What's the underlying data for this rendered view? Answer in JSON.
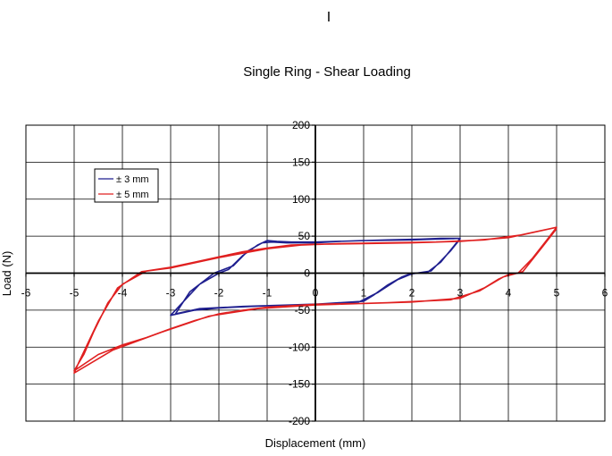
{
  "top_mark": "I",
  "chart_data": {
    "type": "line",
    "title": "Single Ring - Shear Loading",
    "xlabel": "Displacement (mm)",
    "ylabel": "Load (N)",
    "xlim": [
      -6,
      6
    ],
    "ylim": [
      -200,
      200
    ],
    "x_ticks": [
      "-6",
      "-5",
      "-4",
      "-3",
      "-2",
      "-1",
      "0",
      "1",
      "2",
      "3",
      "4",
      "5",
      "6"
    ],
    "y_ticks": [
      "200",
      "150",
      "100",
      "50",
      "0",
      "-50",
      "-100",
      "-150",
      "-200"
    ],
    "grid": true,
    "legend_position": "upper-left",
    "series": [
      {
        "name": "± 3 mm",
        "color": "#1f1f8f",
        "points": [
          [
            3.0,
            47
          ],
          [
            2.5,
            46
          ],
          [
            2.0,
            45
          ],
          [
            1.0,
            44
          ],
          [
            0.0,
            42
          ],
          [
            -0.5,
            42
          ],
          [
            -0.8,
            43
          ],
          [
            -1.0,
            44
          ],
          [
            -1.2,
            38
          ],
          [
            -1.5,
            24
          ],
          [
            -1.8,
            5
          ],
          [
            -2.0,
            0
          ],
          [
            -2.4,
            -15
          ],
          [
            -3.0,
            -57
          ],
          [
            -2.5,
            -50
          ],
          [
            -2.0,
            -47
          ],
          [
            -1.0,
            -44
          ],
          [
            0.0,
            -42
          ],
          [
            0.5,
            -40
          ],
          [
            1.0,
            -38
          ],
          [
            1.2,
            -30
          ],
          [
            1.5,
            -16
          ],
          [
            1.8,
            -5
          ],
          [
            2.0,
            0
          ],
          [
            2.3,
            0
          ],
          [
            2.6,
            15
          ],
          [
            3.0,
            47
          ],
          [
            2.6,
            47
          ],
          [
            2.2,
            46
          ],
          [
            1.5,
            45
          ],
          [
            0.5,
            43
          ],
          [
            0.0,
            41
          ],
          [
            -0.6,
            41
          ],
          [
            -0.9,
            42
          ],
          [
            -1.1,
            41
          ],
          [
            -1.4,
            30
          ],
          [
            -1.7,
            10
          ],
          [
            -2.1,
            0
          ],
          [
            -2.6,
            -25
          ],
          [
            -2.9,
            -55
          ],
          [
            -2.4,
            -48
          ],
          [
            -1.5,
            -45
          ],
          [
            -0.5,
            -43
          ],
          [
            0.4,
            -41
          ],
          [
            0.9,
            -39
          ],
          [
            1.3,
            -26
          ],
          [
            1.7,
            -9
          ],
          [
            2.0,
            -1
          ],
          [
            2.4,
            3
          ],
          [
            2.8,
            30
          ],
          [
            3.0,
            46
          ]
        ]
      },
      {
        "name": "± 5 mm",
        "color": "#e02020",
        "points": [
          [
            5.0,
            62
          ],
          [
            4.0,
            48
          ],
          [
            3.0,
            43
          ],
          [
            2.0,
            41
          ],
          [
            1.0,
            40
          ],
          [
            0.0,
            39
          ],
          [
            -0.5,
            38
          ],
          [
            -1.0,
            34
          ],
          [
            -1.5,
            29
          ],
          [
            -2.0,
            22
          ],
          [
            -2.5,
            15
          ],
          [
            -3.0,
            8
          ],
          [
            -3.5,
            3
          ],
          [
            -4.0,
            -15
          ],
          [
            -4.3,
            -40
          ],
          [
            -4.6,
            -80
          ],
          [
            -4.8,
            -110
          ],
          [
            -5.0,
            -132
          ],
          [
            -4.5,
            -110
          ],
          [
            -4.0,
            -97
          ],
          [
            -3.5,
            -87
          ],
          [
            -3.0,
            -75
          ],
          [
            -2.5,
            -64
          ],
          [
            -2.0,
            -55
          ],
          [
            -1.5,
            -50
          ],
          [
            -1.0,
            -46
          ],
          [
            -0.5,
            -44
          ],
          [
            0.0,
            -42
          ],
          [
            1.0,
            -41
          ],
          [
            2.0,
            -39
          ],
          [
            3.0,
            -34
          ],
          [
            3.5,
            -20
          ],
          [
            3.8,
            -8
          ],
          [
            4.0,
            -2
          ],
          [
            4.2,
            0
          ],
          [
            4.5,
            20
          ],
          [
            4.8,
            45
          ],
          [
            5.0,
            62
          ],
          [
            4.3,
            52
          ],
          [
            3.5,
            45
          ],
          [
            2.5,
            42
          ],
          [
            1.5,
            41
          ],
          [
            0.5,
            40
          ],
          [
            -0.3,
            38
          ],
          [
            -1.0,
            33
          ],
          [
            -2.0,
            21
          ],
          [
            -3.0,
            7
          ],
          [
            -3.6,
            2
          ],
          [
            -4.1,
            -20
          ],
          [
            -4.5,
            -65
          ],
          [
            -4.9,
            -120
          ],
          [
            -5.0,
            -135
          ],
          [
            -4.2,
            -104
          ],
          [
            -3.2,
            -80
          ],
          [
            -2.2,
            -58
          ],
          [
            -1.2,
            -48
          ],
          [
            0.0,
            -43
          ],
          [
            1.5,
            -40
          ],
          [
            2.8,
            -36
          ],
          [
            3.4,
            -24
          ],
          [
            3.9,
            -5
          ],
          [
            4.3,
            2
          ],
          [
            4.7,
            35
          ],
          [
            5.0,
            60
          ]
        ]
      }
    ]
  }
}
